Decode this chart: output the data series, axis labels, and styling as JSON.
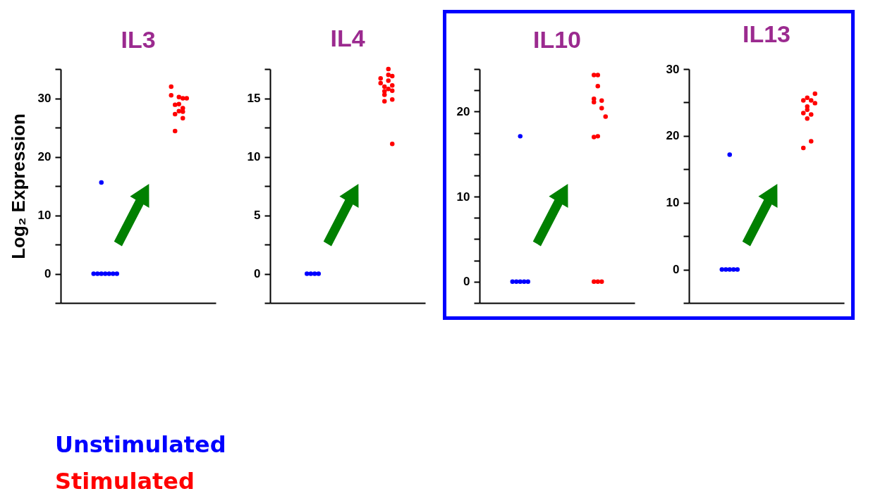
{
  "chart_data": [
    {
      "type": "scatter",
      "title": "IL3",
      "ylabel": "Log₂ Expression",
      "ylim": [
        -5,
        35
      ],
      "yticks": [
        {
          "value": -5,
          "label": null
        },
        0,
        {
          "value": 5,
          "label": null
        },
        10,
        {
          "value": 15,
          "label": null
        },
        20,
        {
          "value": 25,
          "label": null
        },
        30,
        {
          "value": 35,
          "label": null
        }
      ],
      "tick_labels": "y",
      "marker": "circle",
      "categories": [
        null,
        null,
        null,
        null,
        null,
        null,
        null,
        null,
        null,
        null,
        null,
        null,
        null,
        null,
        null,
        null,
        null,
        null,
        null,
        null,
        null,
        null,
        null,
        null,
        null,
        null,
        null,
        null,
        null,
        null,
        null,
        null,
        null,
        null,
        null,
        null,
        null,
        null,
        null,
        null
      ],
      "series": [
        {
          "name": "Unstimulated",
          "color": "#0000ff",
          "values": [
            null,
            null,
            null,
            null,
            null,
            null,
            null,
            null,
            0,
            0,
            0,
            0,
            0,
            0,
            0,
            null,
            null,
            null,
            null,
            null,
            null,
            null,
            null,
            null,
            null,
            null,
            null,
            null,
            null,
            null,
            null,
            null,
            null,
            null,
            null,
            null,
            null,
            null,
            null,
            null
          ]
        },
        {
          "color": "#0000ff",
          "values": [
            null,
            null,
            null,
            null,
            null,
            null,
            null,
            null,
            null,
            null,
            15.6,
            null,
            null,
            null,
            null,
            null,
            null,
            null,
            null,
            null,
            null,
            null,
            null,
            null,
            null,
            null,
            null,
            null,
            null,
            null,
            null,
            null,
            null,
            null,
            null,
            null,
            null,
            null,
            null,
            null
          ]
        },
        {
          "name": "Stimulated",
          "color": "#ff0000",
          "values": [
            null,
            null,
            null,
            null,
            null,
            null,
            null,
            null,
            null,
            null,
            null,
            null,
            null,
            null,
            null,
            null,
            null,
            null,
            null,
            null,
            null,
            null,
            null,
            null,
            null,
            null,
            null,
            null,
            32,
            28.9,
            30.2,
            28.3,
            30,
            null,
            null,
            null,
            null,
            null,
            null,
            null
          ]
        },
        {
          "color": "#ff0000",
          "values": [
            null,
            null,
            null,
            null,
            null,
            null,
            null,
            null,
            null,
            null,
            null,
            null,
            null,
            null,
            null,
            null,
            null,
            null,
            null,
            null,
            null,
            null,
            null,
            null,
            null,
            null,
            null,
            null,
            30.5,
            24.4,
            27.8,
            27.7,
            null,
            null,
            null,
            null,
            null,
            null,
            null,
            null
          ]
        },
        {
          "color": "#ff0000",
          "values": [
            null,
            null,
            null,
            null,
            null,
            null,
            null,
            null,
            null,
            null,
            null,
            null,
            null,
            null,
            null,
            null,
            null,
            null,
            null,
            null,
            null,
            null,
            null,
            null,
            null,
            null,
            null,
            null,
            null,
            27.3,
            29,
            26.6,
            null,
            null,
            null,
            null,
            null,
            null,
            null,
            null
          ]
        },
        {
          "color": "#ff0000",
          "values": [
            null,
            null,
            null,
            null,
            null,
            null,
            null,
            null,
            null,
            null,
            null,
            null,
            null,
            null,
            null,
            null,
            null,
            null,
            null,
            null,
            null,
            null,
            null,
            null,
            null,
            null,
            null,
            null,
            null,
            null,
            null,
            30,
            null,
            null,
            null,
            null,
            null,
            null,
            null,
            null
          ]
        }
      ]
    },
    {
      "type": "scatter",
      "title": "IL4",
      "ylim": [
        -2.5,
        17.5
      ],
      "yticks": [
        {
          "value": -2.5,
          "label": null
        },
        0,
        {
          "value": 2.5,
          "label": null
        },
        5,
        {
          "value": 7.5,
          "label": null
        },
        10,
        {
          "value": 12.5,
          "label": null
        },
        15,
        {
          "value": 17.5,
          "label": null
        }
      ],
      "tick_labels": "y",
      "marker": "circle",
      "categories": [
        null,
        null,
        null,
        null,
        null,
        null,
        null,
        null,
        null,
        null,
        null,
        null,
        null,
        null,
        null,
        null,
        null,
        null,
        null,
        null,
        null,
        null,
        null,
        null,
        null,
        null,
        null,
        null,
        null,
        null,
        null,
        null,
        null,
        null,
        null,
        null,
        null,
        null,
        null,
        null
      ],
      "series": [
        {
          "color": "#0000ff",
          "values": [
            null,
            null,
            null,
            null,
            null,
            null,
            null,
            null,
            null,
            0,
            0,
            0,
            0,
            null,
            null,
            null,
            null,
            null,
            null,
            null,
            null,
            null,
            null,
            null,
            null,
            null,
            null,
            null,
            null,
            null,
            null,
            null,
            null,
            null,
            null,
            null,
            null,
            null,
            null,
            null
          ]
        },
        {
          "color": "#ff0000",
          "values": [
            null,
            null,
            null,
            null,
            null,
            null,
            null,
            null,
            null,
            null,
            null,
            null,
            null,
            null,
            null,
            null,
            null,
            null,
            null,
            null,
            null,
            null,
            null,
            null,
            null,
            null,
            null,
            null,
            16.7,
            16.0,
            17.5,
            11.1,
            null,
            null,
            null,
            null,
            null,
            null,
            null,
            null
          ]
        },
        {
          "color": "#ff0000",
          "values": [
            null,
            null,
            null,
            null,
            null,
            null,
            null,
            null,
            null,
            null,
            null,
            null,
            null,
            null,
            null,
            null,
            null,
            null,
            null,
            null,
            null,
            null,
            null,
            null,
            null,
            null,
            null,
            null,
            16.3,
            15.6,
            17.0,
            16.1,
            null,
            null,
            null,
            null,
            null,
            null,
            null,
            null
          ]
        },
        {
          "color": "#ff0000",
          "values": [
            null,
            null,
            null,
            null,
            null,
            null,
            null,
            null,
            null,
            null,
            null,
            null,
            null,
            null,
            null,
            null,
            null,
            null,
            null,
            null,
            null,
            null,
            null,
            null,
            null,
            null,
            null,
            null,
            null,
            15.3,
            null,
            15.65,
            null,
            null,
            null,
            null,
            null,
            null,
            null,
            null
          ]
        },
        {
          "color": "#ff0000",
          "values": [
            null,
            null,
            null,
            null,
            null,
            null,
            null,
            null,
            null,
            null,
            null,
            null,
            null,
            null,
            null,
            null,
            null,
            null,
            null,
            null,
            null,
            null,
            null,
            null,
            null,
            null,
            null,
            null,
            null,
            14.75,
            16.5,
            14.9,
            null,
            null,
            null,
            null,
            null,
            null,
            null,
            null
          ]
        },
        {
          "color": "#ff0000",
          "values": [
            null,
            null,
            null,
            null,
            null,
            null,
            null,
            null,
            null,
            null,
            null,
            null,
            null,
            null,
            null,
            null,
            null,
            null,
            null,
            null,
            null,
            null,
            null,
            null,
            null,
            null,
            null,
            null,
            null,
            null,
            15.8,
            16.9,
            null,
            null,
            null,
            null,
            null,
            null,
            null,
            null
          ]
        }
      ]
    },
    {
      "type": "scatter",
      "title": "IL10",
      "ylim": [
        -2.5,
        25
      ],
      "yticks": [
        {
          "value": -2.5,
          "label": null
        },
        0,
        {
          "value": 2.5,
          "label": null
        },
        {
          "value": 5,
          "label": null
        },
        {
          "value": 7.5,
          "label": null
        },
        10,
        {
          "value": 12.5,
          "label": null
        },
        {
          "value": 15,
          "label": null
        },
        {
          "value": 17.5,
          "label": null
        },
        20,
        {
          "value": 22.5,
          "label": null
        },
        {
          "value": 25,
          "label": null
        }
      ],
      "tick_labels": "y",
      "marker": "circle",
      "categories": [
        null,
        null,
        null,
        null,
        null,
        null,
        null,
        null,
        null,
        null,
        null,
        null,
        null,
        null,
        null,
        null,
        null,
        null,
        null,
        null,
        null,
        null,
        null,
        null,
        null,
        null,
        null,
        null,
        null,
        null,
        null,
        null,
        null,
        null,
        null,
        null,
        null,
        null,
        null,
        null
      ],
      "series": [
        {
          "color": "#0000ff",
          "values": [
            null,
            null,
            null,
            null,
            null,
            null,
            null,
            null,
            0,
            0,
            0,
            0,
            0,
            null,
            null,
            null,
            null,
            null,
            null,
            null,
            null,
            null,
            null,
            null,
            null,
            null,
            null,
            null,
            null,
            null,
            null,
            null,
            null,
            null,
            null,
            null,
            null,
            null,
            null,
            null
          ]
        },
        {
          "color": "#0000ff",
          "values": [
            null,
            null,
            null,
            null,
            null,
            null,
            null,
            null,
            null,
            null,
            17.1,
            null,
            null,
            null,
            null,
            null,
            null,
            null,
            null,
            null,
            null,
            null,
            null,
            null,
            null,
            null,
            null,
            null,
            null,
            null,
            null,
            null,
            null,
            null,
            null,
            null,
            null,
            null,
            null,
            null
          ]
        },
        {
          "color": "#ff0000",
          "values": [
            null,
            null,
            null,
            null,
            null,
            null,
            null,
            null,
            null,
            null,
            null,
            null,
            null,
            null,
            null,
            null,
            null,
            null,
            null,
            null,
            null,
            null,
            null,
            null,
            null,
            null,
            null,
            null,
            null,
            24.3,
            23.0,
            0,
            19.4,
            null,
            null,
            null,
            null,
            null,
            null,
            null
          ]
        },
        {
          "color": "#ff0000",
          "values": [
            null,
            null,
            null,
            null,
            null,
            null,
            null,
            null,
            null,
            null,
            null,
            null,
            null,
            null,
            null,
            null,
            null,
            null,
            null,
            null,
            null,
            null,
            null,
            null,
            null,
            null,
            null,
            null,
            null,
            0,
            24.3,
            21.3,
            null,
            null,
            null,
            null,
            null,
            null,
            null,
            null
          ]
        },
        {
          "color": "#ff0000",
          "values": [
            null,
            null,
            null,
            null,
            null,
            null,
            null,
            null,
            null,
            null,
            null,
            null,
            null,
            null,
            null,
            null,
            null,
            null,
            null,
            null,
            null,
            null,
            null,
            null,
            null,
            null,
            null,
            null,
            null,
            21.5,
            0,
            20.4,
            null,
            null,
            null,
            null,
            null,
            null,
            null,
            null
          ]
        },
        {
          "color": "#ff0000",
          "values": [
            null,
            null,
            null,
            null,
            null,
            null,
            null,
            null,
            null,
            null,
            null,
            null,
            null,
            null,
            null,
            null,
            null,
            null,
            null,
            null,
            null,
            null,
            null,
            null,
            null,
            null,
            null,
            null,
            null,
            21.1,
            17.1,
            null,
            null,
            null,
            null,
            null,
            null,
            null,
            null,
            null
          ]
        },
        {
          "color": "#ff0000",
          "values": [
            null,
            null,
            null,
            null,
            null,
            null,
            null,
            null,
            null,
            null,
            null,
            null,
            null,
            null,
            null,
            null,
            null,
            null,
            null,
            null,
            null,
            null,
            null,
            null,
            null,
            null,
            null,
            null,
            null,
            17.0,
            null,
            null,
            null,
            null,
            null,
            null,
            null,
            null,
            null,
            null
          ]
        }
      ]
    },
    {
      "type": "scatter",
      "title": "IL13",
      "ylim": [
        -5,
        30
      ],
      "yticks": [
        {
          "value": -5,
          "label": null
        },
        0,
        {
          "value": 5,
          "label": null
        },
        10,
        {
          "value": 15,
          "label": null
        },
        20,
        {
          "value": 25,
          "label": null
        },
        30
      ],
      "tick_labels": "y",
      "marker": "circle",
      "categories": [
        null,
        null,
        null,
        null,
        null,
        null,
        null,
        null,
        null,
        null,
        null,
        null,
        null,
        null,
        null,
        null,
        null,
        null,
        null,
        null,
        null,
        null,
        null,
        null,
        null,
        null,
        null,
        null,
        null,
        null,
        null,
        null,
        null,
        null,
        null,
        null,
        null,
        null,
        null,
        null
      ],
      "series": [
        {
          "color": "#0000ff",
          "values": [
            null,
            null,
            null,
            null,
            null,
            null,
            null,
            null,
            0,
            0,
            0,
            0,
            0,
            null,
            null,
            null,
            null,
            null,
            null,
            null,
            null,
            null,
            null,
            null,
            null,
            null,
            null,
            null,
            null,
            null,
            null,
            null,
            null,
            null,
            null,
            null,
            null,
            null,
            null,
            null
          ]
        },
        {
          "color": "#0000ff",
          "values": [
            null,
            null,
            null,
            null,
            null,
            null,
            null,
            null,
            null,
            null,
            17.2,
            null,
            null,
            null,
            null,
            null,
            null,
            null,
            null,
            null,
            null,
            null,
            null,
            null,
            null,
            null,
            null,
            null,
            null,
            null,
            null,
            null,
            null,
            null,
            null,
            null,
            null,
            null,
            null,
            null
          ]
        },
        {
          "color": "#ff0000",
          "values": [
            null,
            null,
            null,
            null,
            null,
            null,
            null,
            null,
            null,
            null,
            null,
            null,
            null,
            null,
            null,
            null,
            null,
            null,
            null,
            null,
            null,
            null,
            null,
            null,
            null,
            null,
            null,
            null,
            null,
            null,
            25.7,
            25.3,
            26.3,
            null,
            null,
            null,
            null,
            null,
            null,
            null
          ]
        },
        {
          "color": "#ff0000",
          "values": [
            null,
            null,
            null,
            null,
            null,
            null,
            null,
            null,
            null,
            null,
            null,
            null,
            null,
            null,
            null,
            null,
            null,
            null,
            null,
            null,
            null,
            null,
            null,
            null,
            null,
            null,
            null,
            null,
            null,
            25.3,
            24.4,
            19.2,
            24.9,
            null,
            null,
            null,
            null,
            null,
            null,
            null
          ]
        },
        {
          "color": "#ff0000",
          "values": [
            null,
            null,
            null,
            null,
            null,
            null,
            null,
            null,
            null,
            null,
            null,
            null,
            null,
            null,
            null,
            null,
            null,
            null,
            null,
            null,
            null,
            null,
            null,
            null,
            null,
            null,
            null,
            null,
            null,
            23.4,
            23.9,
            23.2,
            null,
            null,
            null,
            null,
            null,
            null,
            null,
            null
          ]
        },
        {
          "color": "#ff0000",
          "values": [
            null,
            null,
            null,
            null,
            null,
            null,
            null,
            null,
            null,
            null,
            null,
            null,
            null,
            null,
            null,
            null,
            null,
            null,
            null,
            null,
            null,
            null,
            null,
            null,
            null,
            null,
            null,
            null,
            null,
            18.2,
            22.6,
            null,
            null,
            null,
            null,
            null,
            null,
            null,
            null,
            null
          ]
        }
      ]
    }
  ]
}
